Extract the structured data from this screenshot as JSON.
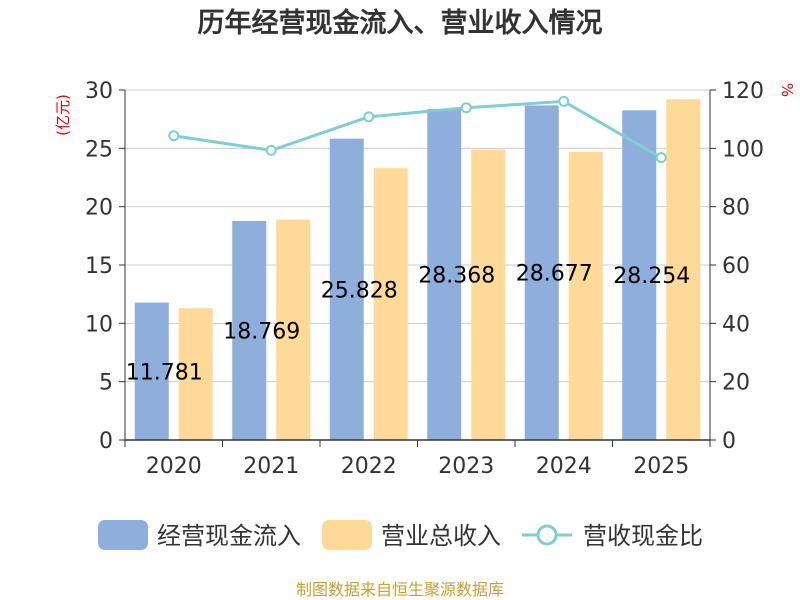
{
  "chart_data": {
    "type": "bar",
    "title": "历年经营现金流入、营业收入情况",
    "categories": [
      "2020",
      "2021",
      "2022",
      "2023",
      "2024",
      "2025"
    ],
    "series": [
      {
        "name": "经营现金流入",
        "kind": "bar",
        "axis": "left",
        "color": "#8eaedc",
        "values": [
          11.781,
          18.769,
          25.828,
          28.368,
          28.677,
          28.254
        ],
        "data_labels": [
          "11.781",
          "18.769",
          "25.828",
          "28.368",
          "28.677",
          "28.254"
        ]
      },
      {
        "name": "营业总收入",
        "kind": "bar",
        "axis": "left",
        "color": "#ffd998",
        "values": [
          11.3,
          18.9,
          23.3,
          24.9,
          24.7,
          29.2
        ]
      },
      {
        "name": "营收现金比",
        "kind": "line",
        "axis": "right",
        "color": "#7fcfd2",
        "values": [
          104.3,
          99.3,
          110.8,
          113.9,
          116.1,
          96.8
        ]
      }
    ],
    "y_left": {
      "unit_label": "(亿元)",
      "range": [
        0,
        30
      ],
      "ticks": [
        "0",
        "5",
        "10",
        "15",
        "20",
        "25",
        "30"
      ]
    },
    "y_right": {
      "unit_label": "%",
      "range": [
        0,
        120
      ],
      "ticks": [
        "0",
        "20",
        "40",
        "60",
        "80",
        "100",
        "120"
      ]
    },
    "grid": true,
    "legend_position": "bottom",
    "source_note": "制图数据来自恒生聚源数据库"
  }
}
